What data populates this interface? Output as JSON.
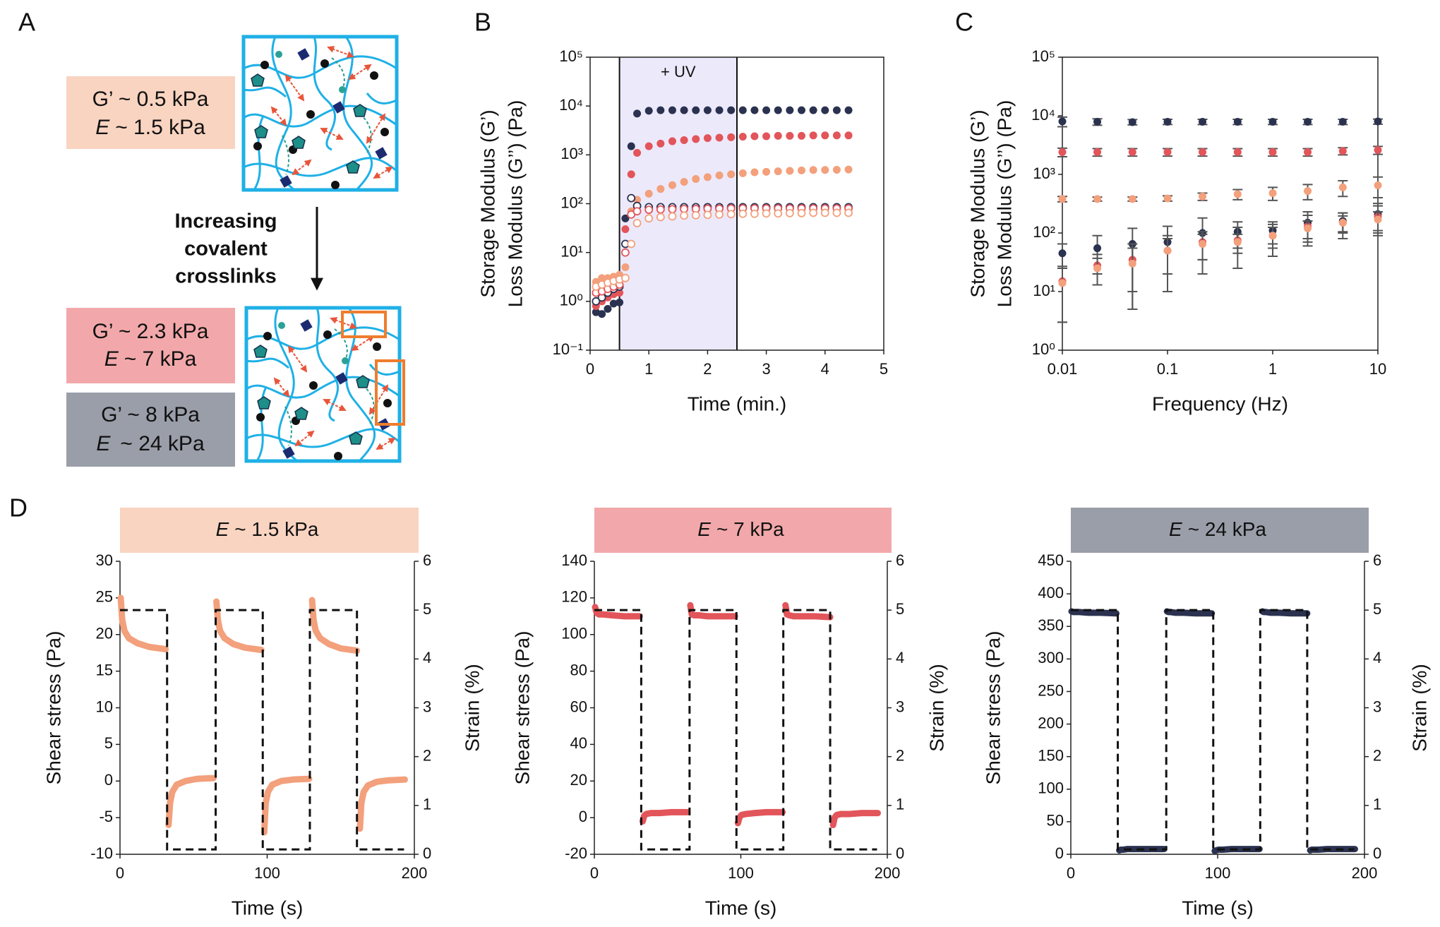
{
  "panel_labels": [
    "A",
    "B",
    "C",
    "D"
  ],
  "diagram": {
    "stiffness_boxes": [
      {
        "modulus": "G’ ~ 0.5 kPa",
        "symbol": "E",
        "value": "~ 1.5 kPa",
        "color": "#f9d4c1"
      },
      {
        "modulus": "G’ ~ 2.3 kPa",
        "symbol": "E",
        "value": "~ 7 kPa",
        "color": "#f2a8aa"
      },
      {
        "modulus": "G’ ~ 8 kPa",
        "symbol": "E",
        "value": "~ 24 kPa",
        "color": "#9a9ea9"
      }
    ],
    "arrow_label": [
      "Increasing",
      "covalent",
      "crosslinks"
    ]
  },
  "chart_data": [
    {
      "type": "scatter",
      "xlabel": "Time (min.)",
      "ylabel": [
        "Storage Modulus (G’)",
        "Loss Modulus (G’’) (Pa)"
      ],
      "xlim": [
        0,
        5
      ],
      "xticks": [
        0,
        1,
        2,
        3,
        4,
        5
      ],
      "ylim": [
        0.1,
        100000
      ],
      "yscale": "log",
      "yticks": [
        {
          "value": 0.1,
          "label": "10⁻¹"
        },
        {
          "value": 1,
          "label": "10⁰"
        },
        {
          "value": 10,
          "label": "10¹"
        },
        {
          "value": 100,
          "label": "10²"
        },
        {
          "value": 1000,
          "label": "10³"
        },
        {
          "value": 10000,
          "label": "10⁴"
        },
        {
          "value": 100000,
          "label": "10⁵"
        }
      ],
      "highlight": {
        "x": [
          0.5,
          2.5
        ],
        "label": "+ UV",
        "color": "#ece9fb"
      },
      "x": [
        0.1,
        0.2,
        0.3,
        0.4,
        0.5,
        0.6,
        0.7,
        0.8,
        1.0,
        1.2,
        1.4,
        1.6,
        1.8,
        2.0,
        2.2,
        2.4,
        2.6,
        2.8,
        3.0,
        3.2,
        3.4,
        3.6,
        3.8,
        4.0,
        4.2,
        4.4
      ],
      "series": [
        {
          "color": "#2b3250",
          "filled": true,
          "values": [
            0.6,
            0.55,
            0.7,
            0.9,
            0.95,
            50,
            1500,
            7000,
            8000,
            8200,
            8200,
            8200,
            8200,
            8200,
            8200,
            8200,
            8200,
            8200,
            8200,
            8200,
            8200,
            8200,
            8200,
            8200,
            8200,
            8200
          ]
        },
        {
          "color": "#e2555a",
          "filled": true,
          "values": [
            0.8,
            1.0,
            1.2,
            1.4,
            1.5,
            30,
            400,
            1100,
            1500,
            1700,
            1900,
            2000,
            2100,
            2200,
            2250,
            2300,
            2350,
            2400,
            2400,
            2450,
            2450,
            2450,
            2500,
            2500,
            2500,
            2500
          ]
        },
        {
          "color": "#f3a07c",
          "filled": true,
          "values": [
            2.5,
            3,
            3,
            3.2,
            3.5,
            5,
            70,
            120,
            160,
            200,
            240,
            280,
            320,
            350,
            380,
            400,
            420,
            440,
            450,
            460,
            470,
            480,
            490,
            490,
            495,
            500
          ]
        },
        {
          "color": "#2b3250",
          "filled": false,
          "values": [
            1.0,
            1.2,
            1.5,
            1.8,
            2.0,
            15,
            130,
            90,
            85,
            85,
            85,
            85,
            85,
            85,
            85,
            85,
            85,
            85,
            85,
            85,
            85,
            85,
            85,
            85,
            85,
            85
          ]
        },
        {
          "color": "#e2555a",
          "filled": false,
          "values": [
            1.5,
            1.6,
            1.8,
            2.0,
            2.2,
            10,
            60,
            70,
            75,
            76,
            77,
            78,
            78,
            79,
            79,
            80,
            80,
            80,
            80,
            80,
            80,
            80,
            80,
            80,
            80,
            80
          ]
        },
        {
          "color": "#f3a07c",
          "filled": false,
          "values": [
            2.0,
            2.2,
            2.4,
            2.6,
            2.8,
            3,
            15,
            40,
            50,
            53,
            55,
            57,
            58,
            59,
            60,
            61,
            62,
            62,
            63,
            63,
            64,
            64,
            65,
            65,
            65,
            65
          ]
        }
      ]
    },
    {
      "type": "scatter",
      "xlabel": "Frequency (Hz)",
      "ylabel": [
        "Storage Modulus (G’)",
        "Loss Modulus (G’’) (Pa)"
      ],
      "xlim": [
        0.01,
        10
      ],
      "xscale": "log",
      "xticks": [
        0.01,
        0.1,
        1,
        10
      ],
      "ylim": [
        1,
        100000
      ],
      "yscale": "log",
      "yticks": [
        {
          "value": 1,
          "label": "10⁰"
        },
        {
          "value": 10,
          "label": "10¹"
        },
        {
          "value": 100,
          "label": "10²"
        },
        {
          "value": 1000,
          "label": "10³"
        },
        {
          "value": 10000,
          "label": "10⁴"
        },
        {
          "value": 100000,
          "label": "10⁵"
        }
      ],
      "error_color": "#555555",
      "x": [
        0.01,
        0.0215,
        0.0464,
        0.1,
        0.215,
        0.464,
        1,
        2.15,
        4.64,
        10
      ],
      "series": [
        {
          "color": "#2b3250",
          "filled": true,
          "values": [
            8000,
            7900,
            7800,
            7900,
            7900,
            7900,
            7900,
            7900,
            7900,
            8000
          ],
          "errors": [
            1500,
            1000,
            800,
            800,
            800,
            800,
            800,
            800,
            800,
            800
          ]
        },
        {
          "color": "#e2555a",
          "filled": true,
          "values": [
            2400,
            2400,
            2400,
            2400,
            2400,
            2400,
            2400,
            2400,
            2500,
            2600
          ],
          "errors": [
            400,
            350,
            350,
            350,
            350,
            350,
            350,
            350,
            350,
            400
          ]
        },
        {
          "color": "#f3a07c",
          "filled": true,
          "values": [
            380,
            380,
            380,
            390,
            420,
            460,
            480,
            520,
            600,
            650
          ],
          "errors": [
            40,
            30,
            30,
            40,
            60,
            90,
            120,
            150,
            180,
            250
          ]
        },
        {
          "color": "#2b3250",
          "filled": true,
          "values": [
            45,
            55,
            65,
            70,
            100,
            105,
            110,
            150,
            160,
            210
          ],
          "errors": [
            20,
            35,
            55,
            60,
            80,
            50,
            45,
            80,
            60,
            110
          ]
        },
        {
          "color": "#e2555a",
          "filled": true,
          "values": [
            15,
            28,
            35,
            50,
            70,
            75,
            90,
            130,
            150,
            190
          ],
          "errors": [
            12,
            15,
            30,
            40,
            35,
            50,
            50,
            70,
            70,
            100
          ]
        },
        {
          "color": "#f3a07c",
          "filled": true,
          "values": [
            14,
            25,
            30,
            50,
            65,
            70,
            90,
            120,
            150,
            170
          ],
          "errors": [
            11,
            12,
            25,
            30,
            30,
            25,
            35,
            40,
            45,
            60
          ]
        }
      ]
    },
    {
      "type": "line",
      "title_symbol": "E",
      "title": "~  1.5 kPa",
      "title_color": "#f9d4c1",
      "xlabel": "Time (s)",
      "ylabel": "Shear stress (Pa)",
      "y2label": "Strain (%)",
      "xlim": [
        0,
        200
      ],
      "xticks": [
        0,
        100,
        200
      ],
      "ylim": [
        -10,
        30
      ],
      "yticks": [
        -10,
        -5,
        0,
        5,
        10,
        15,
        20,
        25,
        30
      ],
      "y2lim": [
        0,
        6
      ],
      "y2ticks": [
        0,
        1,
        2,
        3,
        4,
        5,
        6
      ],
      "series": [
        {
          "color": "#f3a07c",
          "x": [
            0.5,
            1.5,
            3,
            6,
            12,
            20,
            31,
            null,
            33,
            34,
            35.5,
            38.5,
            44.5,
            52.5,
            63.5,
            null,
            65.5,
            66.5,
            68,
            71,
            77,
            85,
            96,
            null,
            98,
            99,
            100.5,
            103.5,
            109.5,
            117.5,
            128.5,
            null,
            130.5,
            131.5,
            133,
            136,
            142,
            150,
            161,
            null,
            163,
            164,
            165.5,
            168.5,
            174.5,
            182.5,
            193.5
          ],
          "values": [
            25,
            22,
            20.5,
            19.5,
            18.8,
            18.3,
            18,
            null,
            -6,
            -3,
            -1.5,
            -0.5,
            0,
            0.3,
            0.4,
            null,
            24.5,
            22,
            20.5,
            19.5,
            18.7,
            18.2,
            17.9,
            null,
            -7,
            -3,
            -1.5,
            -0.5,
            0,
            0.2,
            0.3,
            null,
            24.7,
            22,
            20.5,
            19.5,
            18.7,
            18.1,
            17.8,
            null,
            -6.5,
            -3,
            -1.5,
            -0.6,
            -0.1,
            0.1,
            0.2
          ]
        },
        {
          "color": "#111111",
          "axis": "y2",
          "dashed": true,
          "x": [
            0,
            32,
            32,
            65,
            65,
            97,
            97,
            129,
            129,
            161,
            161,
            193
          ],
          "values": [
            5,
            5,
            0.1,
            0.1,
            5,
            5,
            0.1,
            0.1,
            5,
            5,
            0.1,
            0.1
          ]
        }
      ]
    },
    {
      "type": "line",
      "title_symbol": "E",
      "title": "~ 7 kPa",
      "title_color": "#f2a8aa",
      "xlabel": "Time (s)",
      "ylabel": "Shear stress (Pa)",
      "y2label": "Strain (%)",
      "xlim": [
        0,
        200
      ],
      "xticks": [
        0,
        100,
        200
      ],
      "ylim": [
        -20,
        140
      ],
      "yticks": [
        -20,
        0,
        20,
        40,
        60,
        80,
        100,
        120,
        140
      ],
      "y2lim": [
        0,
        6
      ],
      "y2ticks": [
        0,
        1,
        2,
        3,
        4,
        5,
        6
      ],
      "series": [
        {
          "color": "#e2555a",
          "x": [
            0.5,
            1.5,
            3,
            6,
            12,
            20,
            31,
            null,
            33,
            34,
            35.5,
            38.5,
            44.5,
            52.5,
            63.5,
            null,
            65.5,
            66.5,
            68,
            71,
            77,
            85,
            96,
            null,
            98,
            99,
            100.5,
            103.5,
            109.5,
            117.5,
            128.5,
            null,
            130.5,
            131.5,
            133,
            136,
            142,
            150,
            161,
            null,
            163,
            164,
            165.5,
            168.5,
            174.5,
            182.5,
            193.5
          ],
          "values": [
            115,
            112,
            111,
            111,
            110.5,
            110,
            110,
            null,
            -2,
            1,
            2,
            2.5,
            2.5,
            3,
            3,
            null,
            116,
            111,
            110.5,
            110.5,
            110,
            110,
            110,
            null,
            -3,
            0,
            1.5,
            2,
            2.5,
            3,
            3,
            null,
            116,
            111,
            110.5,
            110,
            110,
            110,
            109.5,
            null,
            -4,
            0,
            1.5,
            2,
            2,
            2.5,
            2.5
          ]
        },
        {
          "color": "#111111",
          "axis": "y2",
          "dashed": true,
          "x": [
            0,
            32,
            32,
            65,
            65,
            97,
            97,
            129,
            129,
            161,
            161,
            193
          ],
          "values": [
            5,
            5,
            0.1,
            0.1,
            5,
            5,
            0.1,
            0.1,
            5,
            5,
            0.1,
            0.1
          ]
        }
      ]
    },
    {
      "type": "line",
      "title_symbol": "E",
      "title": "~ 24 kPa",
      "title_color": "#9a9ea9",
      "xlabel": "Time (s)",
      "ylabel": "Shear stress (Pa)",
      "y2label": "Strain (%)",
      "xlim": [
        0,
        200
      ],
      "xticks": [
        0,
        100,
        200
      ],
      "ylim": [
        0,
        450
      ],
      "yticks": [
        0,
        50,
        100,
        150,
        200,
        250,
        300,
        350,
        400,
        450
      ],
      "y2lim": [
        0,
        6
      ],
      "y2ticks": [
        0,
        1,
        2,
        3,
        4,
        5,
        6
      ],
      "series": [
        {
          "color": "#2b3250",
          "x": [
            0.5,
            1.5,
            3,
            6,
            12,
            20,
            31,
            null,
            33,
            34,
            35.5,
            38.5,
            44.5,
            52.5,
            63.5,
            null,
            65.5,
            66.5,
            68,
            71,
            77,
            85,
            96,
            null,
            98,
            99,
            100.5,
            103.5,
            109.5,
            117.5,
            128.5,
            null,
            130.5,
            131.5,
            133,
            136,
            142,
            150,
            161,
            null,
            163,
            164,
            165.5,
            168.5,
            174.5,
            182.5,
            193.5
          ],
          "values": [
            373,
            372,
            372,
            372,
            371,
            371,
            370,
            null,
            6,
            7,
            7,
            8,
            8,
            8,
            8,
            null,
            373,
            372,
            372,
            371,
            371,
            370,
            370,
            null,
            5,
            6,
            7,
            7,
            8,
            8,
            8,
            null,
            373,
            372,
            372,
            371,
            371,
            370,
            370,
            null,
            6,
            7,
            7,
            7,
            8,
            8,
            8
          ]
        },
        {
          "color": "#111111",
          "axis": "y2",
          "dashed": true,
          "x": [
            0,
            32,
            32,
            65,
            65,
            97,
            97,
            129,
            129,
            161,
            161,
            193
          ],
          "values": [
            5,
            5,
            0.1,
            0.1,
            5,
            5,
            0.1,
            0.1,
            5,
            5,
            0.1,
            0.1
          ]
        }
      ]
    }
  ]
}
